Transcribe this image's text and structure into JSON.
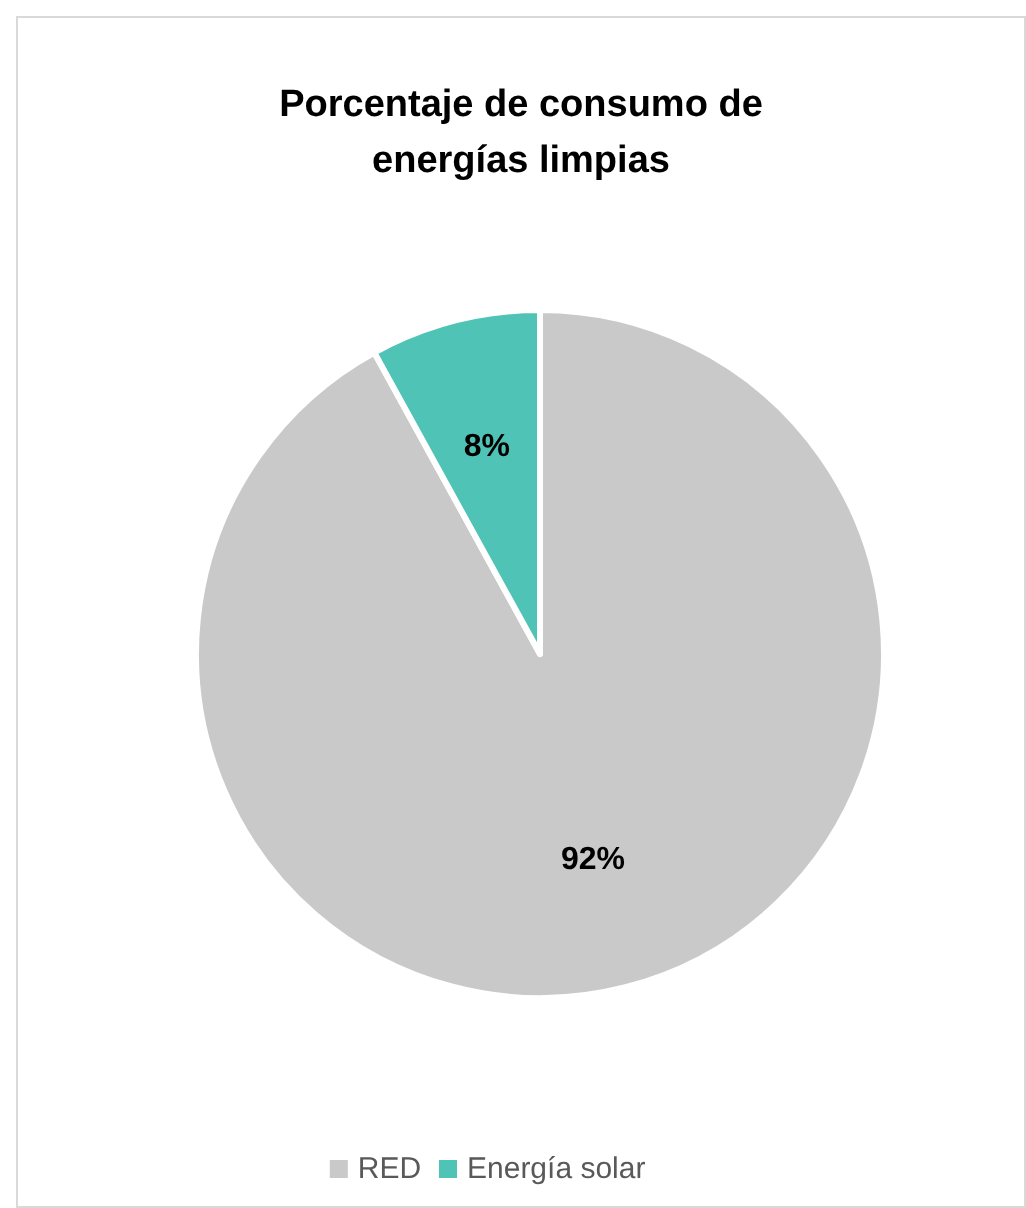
{
  "chart_data": {
    "type": "pie",
    "title": "Porcentaje de consumo de energías limpias",
    "categories": [
      "RED",
      "Energía solar"
    ],
    "values": [
      92,
      8
    ],
    "colors": [
      "#c8c9c8",
      "#4fc3b5"
    ],
    "value_labels": [
      "92%",
      "8%"
    ],
    "legend": "bottom"
  }
}
